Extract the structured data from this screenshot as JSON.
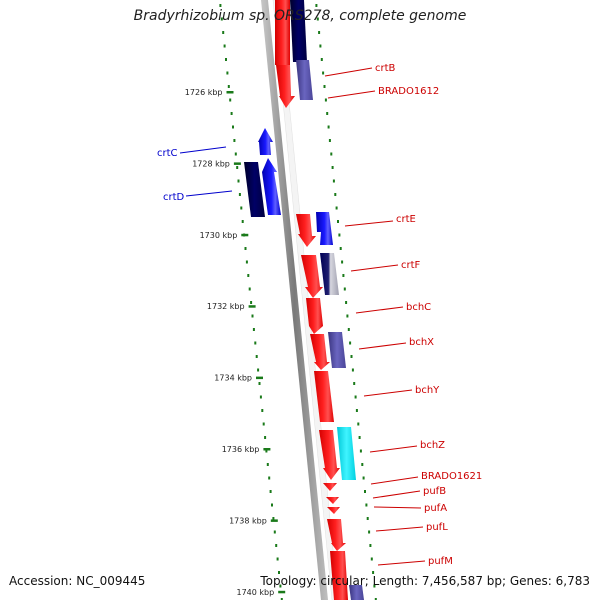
{
  "title": "Bradyrhizobium sp. ORS278, complete genome",
  "footer": {
    "accession": "Accession: NC_009445",
    "topology": "Topology: circular; Length: 7,456,587 bp; Genes: 6,783"
  },
  "colors": {
    "forward_strand": "#ff1a1a",
    "reverse_strand": "#1a1aff",
    "dark_blue": "#000066",
    "slate": "#5a55a8",
    "cyan": "#00e0ee",
    "tick": "#1a7a1a",
    "label_red": "#cc0000",
    "label_blue": "#0000cc",
    "backbone": "#888888"
  },
  "scale": {
    "unit": "kbp",
    "ticks": [
      {
        "kbp": 1726,
        "label": "1726 kbp"
      },
      {
        "kbp": 1728,
        "label": "1728 kbp"
      },
      {
        "kbp": 1730,
        "label": "1730 kbp"
      },
      {
        "kbp": 1732,
        "label": "1732 kbp"
      },
      {
        "kbp": 1734,
        "label": "1734 kbp"
      },
      {
        "kbp": 1736,
        "label": "1736 kbp"
      },
      {
        "kbp": 1738,
        "label": "1738 kbp"
      },
      {
        "kbp": 1740,
        "label": "1740 kbp"
      }
    ]
  },
  "genes": [
    {
      "label": "crtB",
      "side": "right",
      "color": "forward_strand"
    },
    {
      "label": "BRADO1612",
      "side": "right",
      "color": "forward_strand"
    },
    {
      "label": "crtC",
      "side": "left",
      "color": "reverse_strand"
    },
    {
      "label": "crtD",
      "side": "left",
      "color": "reverse_strand"
    },
    {
      "label": "crtE",
      "side": "right",
      "color": "forward_strand"
    },
    {
      "label": "crtF",
      "side": "right",
      "color": "forward_strand"
    },
    {
      "label": "bchC",
      "side": "right",
      "color": "forward_strand"
    },
    {
      "label": "bchX",
      "side": "right",
      "color": "forward_strand"
    },
    {
      "label": "bchY",
      "side": "right",
      "color": "forward_strand"
    },
    {
      "label": "bchZ",
      "side": "right",
      "color": "forward_strand"
    },
    {
      "label": "BRADO1621",
      "side": "right",
      "color": "forward_strand"
    },
    {
      "label": "pufB",
      "side": "right",
      "color": "forward_strand"
    },
    {
      "label": "pufA",
      "side": "right",
      "color": "forward_strand"
    },
    {
      "label": "pufL",
      "side": "right",
      "color": "forward_strand"
    },
    {
      "label": "pufM",
      "side": "right",
      "color": "forward_strand"
    }
  ]
}
